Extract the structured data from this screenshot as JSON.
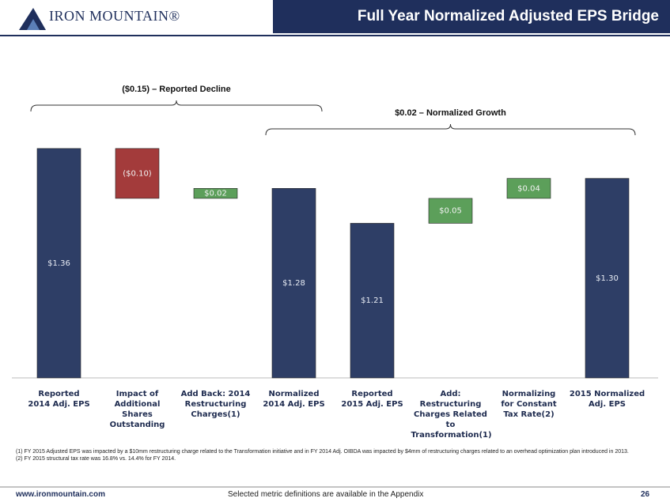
{
  "header": {
    "logo": "IRON MOUNTAIN®",
    "title": "Full Year Normalized Adjusted EPS Bridge"
  },
  "chart_data": {
    "type": "waterfall",
    "categories": [
      "Reported\n2014 Adj. EPS",
      "Impact of\nAdditional Shares\nOutstanding",
      "Add Back: 2014\nRestructuring\nCharges(1)",
      "Normalized\n2014 Adj. EPS",
      "Reported\n2015 Adj. EPS",
      "Add: Restructuring\nCharges Related to\nTransformation(1)",
      "Normalizing\nfor Constant\nTax Rate(2)",
      "2015 Normalized\nAdj. EPS"
    ],
    "values": [
      1.36,
      -0.1,
      0.02,
      1.28,
      1.21,
      0.05,
      0.04,
      1.3
    ],
    "value_labels": [
      "$1.36",
      "($0.10)",
      "$0.02",
      "$1.28",
      "$1.21",
      "$0.05",
      "$0.04",
      "$1.30"
    ],
    "measure": [
      "total",
      "relative",
      "relative",
      "total",
      "total",
      "relative",
      "relative",
      "total"
    ],
    "colors": [
      "#2e3e66",
      "#a33b3b",
      "#5c9f5a",
      "#2e3e66",
      "#2e3e66",
      "#5c9f5a",
      "#5c9f5a",
      "#2e3e66"
    ],
    "ylim": [
      0.9,
      1.42
    ],
    "annotations": [
      "($0.15) – Reported Decline",
      "$0.02 – Normalized Growth"
    ]
  },
  "footnotes": [
    "(1) FY 2015  Adjusted EPS was impacted by a $10mm restructuring charge related to the Transformation initiative and in FY 2014 Adj. OIBDA was impacted by $4mm of restructuring charges related to an overhead optimization plan introduced in 2013.",
    "(2) FY 2015 structural tax rate was 16.8% vs. 14.4% for FY 2014."
  ],
  "footer": {
    "url": "www.ironmountain.com",
    "note": "Selected metric definitions are available in the Appendix",
    "page": "26"
  }
}
